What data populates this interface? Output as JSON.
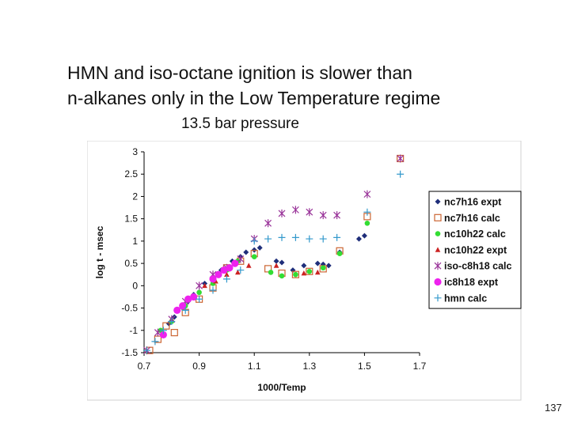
{
  "slide": {
    "title_line1": "HMN and iso-octane ignition is slower than",
    "title_line2": "n-alkanes only in the Low Temperature regime",
    "subtitle": "13.5 bar pressure",
    "page_number": "137"
  },
  "chart_data": {
    "type": "scatter",
    "title": "",
    "xlabel": "1000/Temp",
    "ylabel": "log t - msec",
    "xlim": [
      0.7,
      1.7
    ],
    "ylim": [
      -1.5,
      3
    ],
    "xticks": [
      "0.7",
      "0.9",
      "1.1",
      "1.3",
      "1.5",
      "1.7"
    ],
    "yticks": [
      "-1.5",
      "-1",
      "-0.5",
      "0",
      "0.5",
      "1",
      "1.5",
      "2",
      "2.5",
      "3"
    ],
    "grid": false,
    "legend_position": "right",
    "series": [
      {
        "name": "nc7h16 expt",
        "marker": "diamond",
        "color": "#1f2e7a",
        "x": [
          0.79,
          0.81,
          0.84,
          0.86,
          0.88,
          0.92,
          0.95,
          0.98,
          1.02,
          1.05,
          1.07,
          1.1,
          1.12,
          1.18,
          1.2,
          1.24,
          1.28,
          1.33,
          1.35,
          1.37,
          1.41,
          1.48,
          1.5
        ],
        "y": [
          -0.85,
          -0.7,
          -0.5,
          -0.35,
          -0.2,
          0.05,
          0.2,
          0.35,
          0.55,
          0.65,
          0.75,
          0.8,
          0.85,
          0.55,
          0.52,
          0.35,
          0.45,
          0.5,
          0.48,
          0.45,
          0.75,
          1.05,
          1.12
        ]
      },
      {
        "name": "nc7h16  calc",
        "marker": "square-open",
        "color": "#cc6633",
        "x": [
          0.72,
          0.75,
          0.78,
          0.81,
          0.85,
          0.9,
          0.95,
          1.0,
          1.05,
          1.1,
          1.15,
          1.2,
          1.25,
          1.3,
          1.35,
          1.41,
          1.51,
          1.63
        ],
        "y": [
          -1.45,
          -1.2,
          -0.9,
          -1.05,
          -0.6,
          -0.3,
          -0.05,
          0.4,
          0.55,
          0.72,
          0.38,
          0.28,
          0.25,
          0.32,
          0.38,
          0.78,
          1.55,
          2.85
        ]
      },
      {
        "name": "nc10h22 calc",
        "marker": "circle",
        "color": "#33dd33",
        "x": [
          0.76,
          0.8,
          0.85,
          0.9,
          0.95,
          1.0,
          1.04,
          1.1,
          1.16,
          1.2,
          1.25,
          1.3,
          1.35,
          1.41,
          1.51
        ],
        "y": [
          -1.0,
          -0.8,
          -0.45,
          -0.15,
          0.05,
          0.35,
          0.55,
          0.65,
          0.3,
          0.22,
          0.25,
          0.32,
          0.4,
          0.72,
          1.4
        ]
      },
      {
        "name": "nc10h22 expt",
        "marker": "triangle",
        "color": "#cc2222",
        "x": [
          0.8,
          0.84,
          0.88,
          0.92,
          0.96,
          1.0,
          1.04,
          1.08,
          1.18,
          1.28,
          1.33
        ],
        "y": [
          -0.75,
          -0.45,
          -0.25,
          0.0,
          0.1,
          0.25,
          0.3,
          0.45,
          0.45,
          0.28,
          0.3
        ]
      },
      {
        "name": "iso-c8h18 calc",
        "marker": "asterisk",
        "color": "#993399",
        "x": [
          0.71,
          0.75,
          0.8,
          0.85,
          0.9,
          0.95,
          1.0,
          1.05,
          1.1,
          1.15,
          1.2,
          1.25,
          1.3,
          1.35,
          1.4,
          1.51,
          1.63
        ],
        "y": [
          -1.45,
          -1.05,
          -0.75,
          -0.35,
          0.0,
          0.25,
          0.4,
          0.6,
          1.05,
          1.4,
          1.62,
          1.7,
          1.65,
          1.58,
          1.58,
          2.05,
          2.85
        ]
      },
      {
        "name": "ic8h18 expt",
        "marker": "circle-large",
        "color": "#ee22ee",
        "x": [
          0.77,
          0.82,
          0.84,
          0.86,
          0.88,
          0.95,
          0.97,
          0.99,
          1.01,
          1.03
        ],
        "y": [
          -1.1,
          -0.55,
          -0.45,
          -0.3,
          -0.25,
          0.15,
          0.25,
          0.35,
          0.4,
          0.5
        ]
      },
      {
        "name": "hmn  calc",
        "marker": "plus",
        "color": "#3399cc",
        "x": [
          0.71,
          0.74,
          0.77,
          0.8,
          0.85,
          0.9,
          0.95,
          1.0,
          1.05,
          1.1,
          1.15,
          1.2,
          1.25,
          1.3,
          1.35,
          1.4,
          1.51,
          1.63
        ],
        "y": [
          -1.45,
          -1.25,
          -1.0,
          -0.8,
          -0.55,
          -0.3,
          -0.1,
          0.15,
          0.35,
          1.0,
          1.05,
          1.08,
          1.08,
          1.05,
          1.05,
          1.08,
          1.65,
          2.5
        ]
      }
    ]
  }
}
